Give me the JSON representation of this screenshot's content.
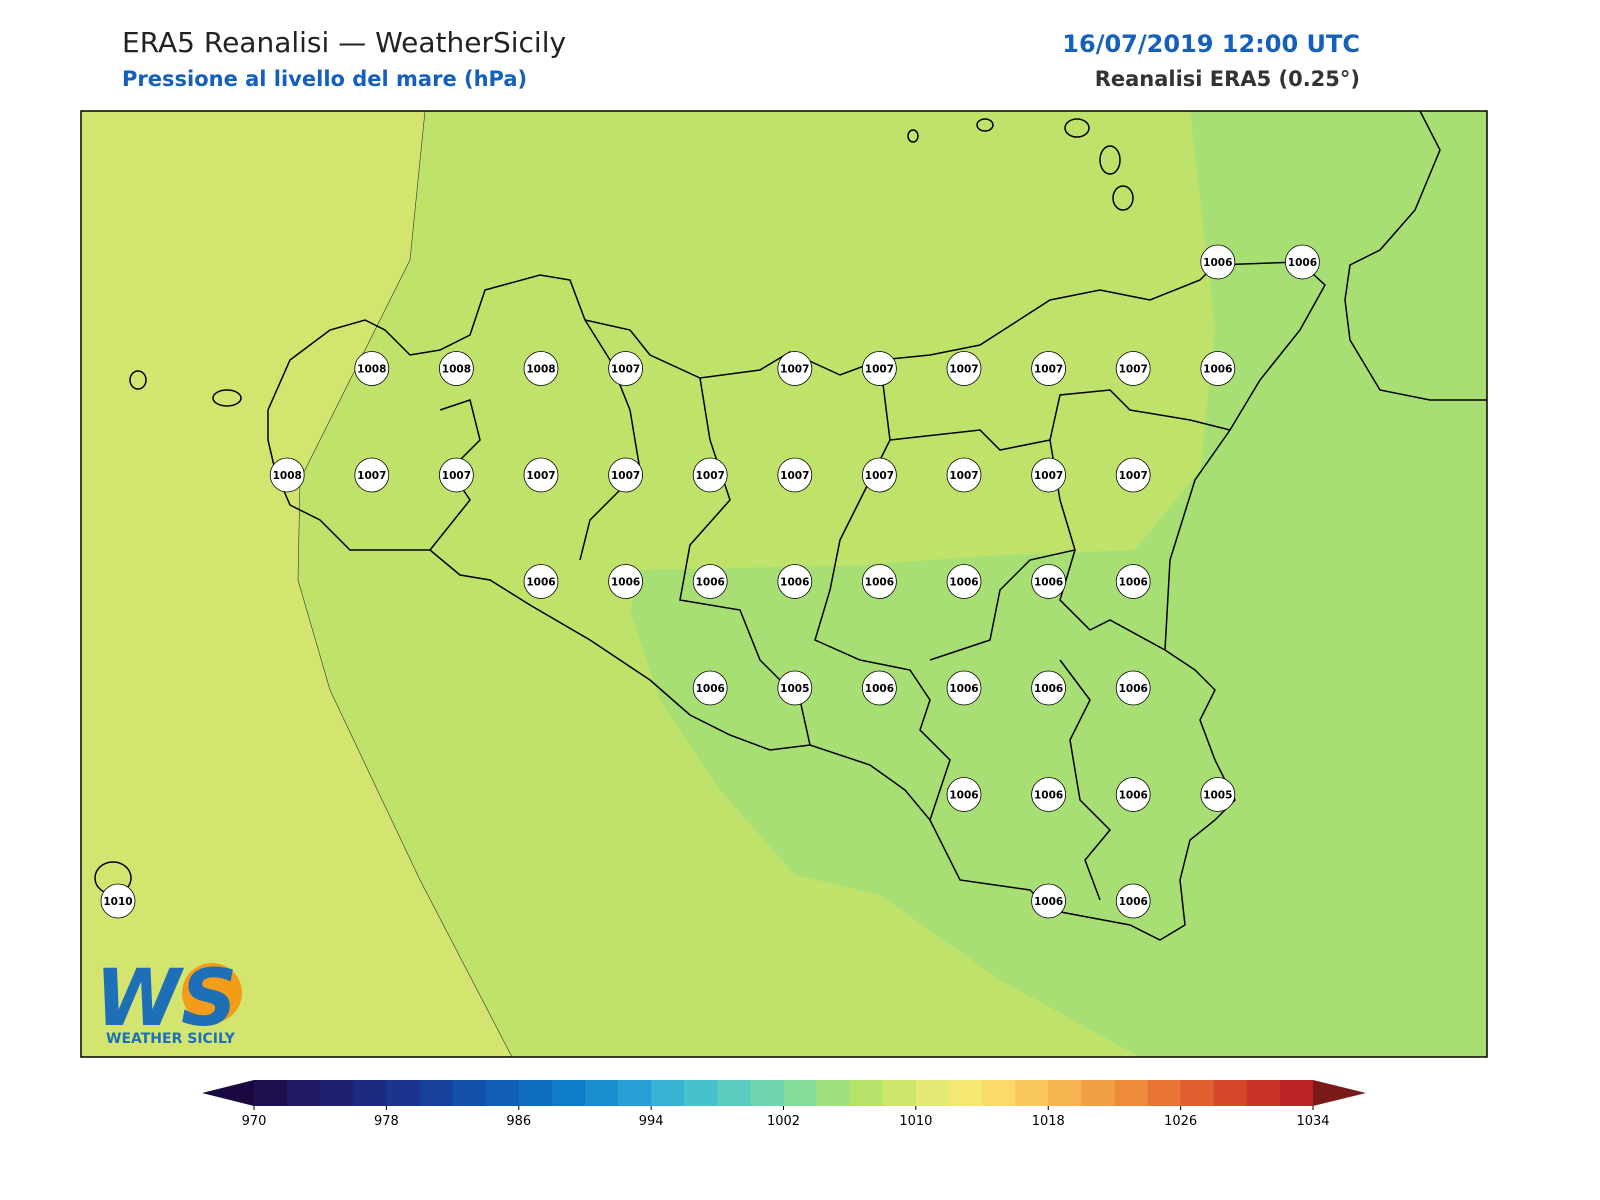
{
  "header": {
    "title": "ERA5 Reanalisi — WeatherSicily",
    "subtitle": "Pressione al livello del mare (hPa)",
    "datetime": "16/07/2019 12:00 UTC",
    "source": "Reanalisi ERA5 (0.25°)"
  },
  "stations": {
    "rows": [
      [
        null,
        null,
        null,
        null,
        null,
        null,
        null,
        null,
        null,
        null,
        null,
        null,
        null,
        1006,
        1006
      ],
      [
        null,
        null,
        null,
        1008,
        1008,
        1008,
        1007,
        null,
        1007,
        1007,
        1007,
        1007,
        1007,
        1006,
        null
      ],
      [
        null,
        null,
        1008,
        1007,
        1007,
        1007,
        1007,
        1007,
        1007,
        1007,
        1007,
        1007,
        1007,
        null,
        null
      ],
      [
        null,
        null,
        null,
        null,
        null,
        1006,
        1006,
        1006,
        1006,
        1006,
        1006,
        1006,
        1006,
        null,
        null
      ],
      [
        null,
        null,
        null,
        null,
        null,
        null,
        null,
        1006,
        1005,
        1006,
        1006,
        1006,
        1006,
        null,
        null
      ],
      [
        null,
        null,
        null,
        null,
        null,
        null,
        null,
        null,
        null,
        null,
        1006,
        1006,
        1006,
        1005,
        null
      ],
      [
        1010,
        null,
        null,
        null,
        null,
        null,
        null,
        null,
        null,
        null,
        null,
        1006,
        1006,
        null,
        null
      ]
    ]
  },
  "colorbar": {
    "lim": [
      970,
      1034
    ],
    "ticks": [
      970,
      978,
      986,
      994,
      1002,
      1010,
      1018,
      1026,
      1034
    ],
    "colors": [
      "#1e0f4f",
      "#221a62",
      "#1f2170",
      "#1c2a80",
      "#1b358f",
      "#17419c",
      "#1450aa",
      "#115eb6",
      "#0e6dc0",
      "#0d7dca",
      "#1a8ed1",
      "#2a9fd6",
      "#37b3d3",
      "#47c2cb",
      "#5bccbf",
      "#6fd5ae",
      "#86db9a",
      "#a0e07c",
      "#b8e36a",
      "#cfe66d",
      "#e2ea74",
      "#f4e873",
      "#fbd96a",
      "#f8c75d",
      "#f5b450",
      "#f1a045",
      "#ed8b3b",
      "#e77434",
      "#df5e2f",
      "#d5482b",
      "#c93429",
      "#bb2427"
    ],
    "under_color": "#1a0840",
    "over_color": "#7b1a1a"
  },
  "logo": {
    "text": "WS",
    "caption": "WEATHER SICILY"
  }
}
